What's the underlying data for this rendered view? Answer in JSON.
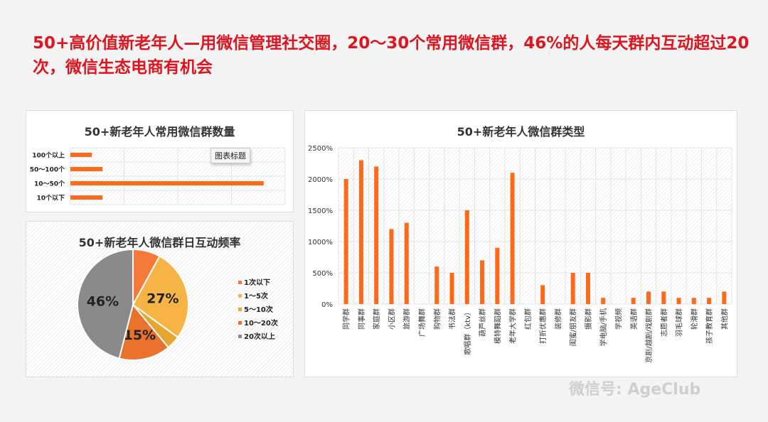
{
  "slide_title": "50+高价值新老年人—用微信管理社交圈，20～30个常用微信群，46%的人每天群内互动超过20次，微信生态电商有机会",
  "tooltip": "图表标题",
  "watermark": "微信号: AgeClub",
  "colors": {
    "accent": "#ff6a1a",
    "title": "#e0141e"
  },
  "chart_data": [
    {
      "type": "bar",
      "orientation": "horizontal",
      "title": "50+新老年人常用微信群数量",
      "categories": [
        "100个以上",
        "50～100个",
        "10～50个",
        "10个以下"
      ],
      "values": [
        10,
        15,
        90,
        15
      ],
      "xlim": [
        0,
        100
      ],
      "grid": true,
      "color": "#ff6a1a"
    },
    {
      "type": "pie",
      "title": "50+新老年人微信群日互动频率",
      "categories": [
        "1次以下",
        "1～5次",
        "5～10次",
        "10～20次",
        "20次以上"
      ],
      "values": [
        8,
        27,
        4,
        15,
        46
      ],
      "data_labels": [
        "",
        "27%",
        "",
        "15%",
        "46%"
      ],
      "colors": [
        "#f47a3a",
        "#f5b445",
        "#e8a530",
        "#e8722c",
        "#8a8a8a"
      ],
      "legend": "right"
    },
    {
      "type": "bar",
      "title": "50+新老年人微信群类型",
      "categories": [
        "同学群",
        "同事群",
        "家庭群",
        "小区群",
        "旅游群",
        "广场舞群",
        "购物群",
        "书法群",
        "歌唱群（ktv）",
        "葫芦丝群",
        "模特舞蹈群",
        "老年大学群",
        "红包群",
        "打折优惠群",
        "装修群",
        "闺蜜/朋友群",
        "摄影群",
        "学电脑/手机",
        "学视频",
        "英语群",
        "京剧/越剧/戏剧群",
        "志愿者群",
        "羽毛球群",
        "轮滑群",
        "孩子教育群",
        "其他群"
      ],
      "values": [
        2000,
        2300,
        2200,
        1200,
        1300,
        0,
        600,
        500,
        1500,
        700,
        900,
        2100,
        0,
        300,
        0,
        500,
        500,
        100,
        0,
        100,
        200,
        200,
        100,
        100,
        100,
        200
      ],
      "yticks": [
        "0%",
        "500%",
        "1000%",
        "1500%",
        "2000%",
        "2500%"
      ],
      "ylim": [
        0,
        2500
      ],
      "grid": true,
      "color": "#ff6a1a"
    }
  ]
}
